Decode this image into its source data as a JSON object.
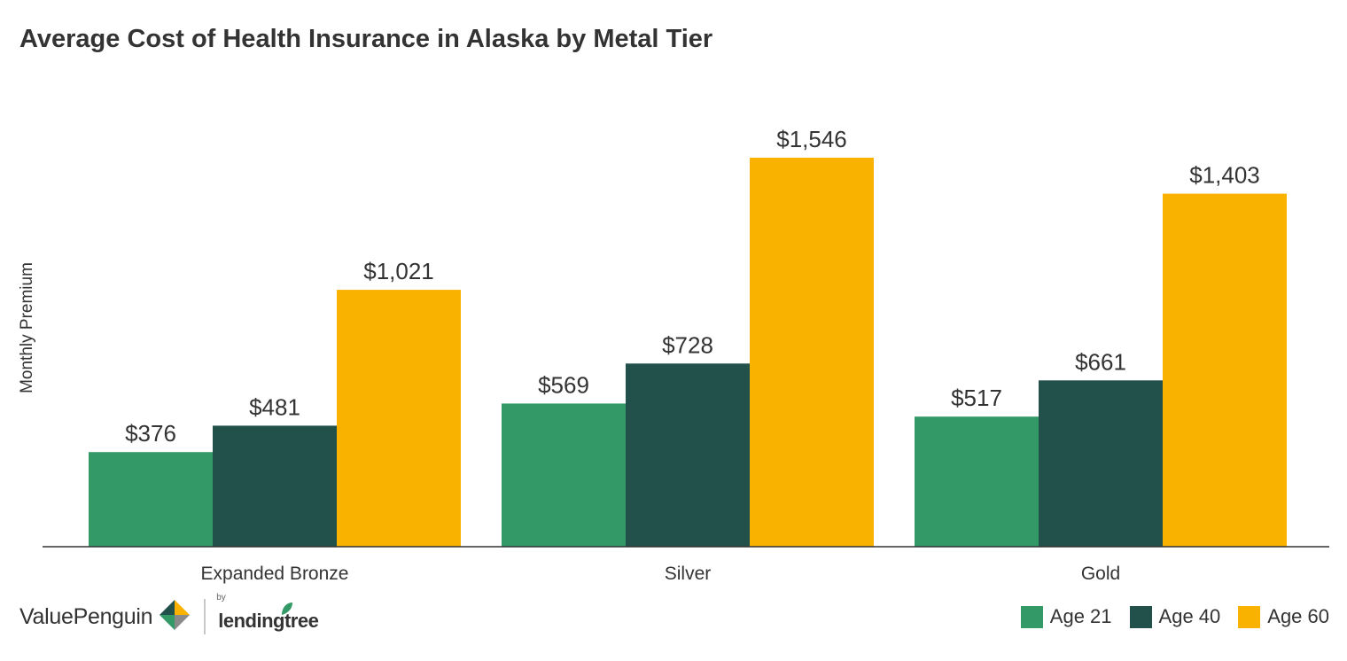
{
  "chart_data": {
    "type": "bar",
    "title": "Average Cost of Health Insurance in Alaska by Metal Tier",
    "ylabel": "Monthly Premium",
    "xlabel": "",
    "categories": [
      "Expanded Bronze",
      "Silver",
      "Gold"
    ],
    "series": [
      {
        "name": "Age 21",
        "color": "#339966",
        "values": [
          376,
          569,
          517
        ],
        "labels": [
          "$376",
          "$569",
          "$517"
        ]
      },
      {
        "name": "Age 40",
        "color": "#22504a",
        "values": [
          481,
          728,
          661
        ],
        "labels": [
          "$481",
          "$728",
          "$661"
        ]
      },
      {
        "name": "Age 60",
        "color": "#f9b200",
        "values": [
          1021,
          1546,
          1403
        ],
        "labels": [
          "$1,021",
          "$1,546",
          "$1,403"
        ]
      }
    ],
    "ylim": [
      0,
      1546
    ],
    "grid": false,
    "legend": "bottom-right"
  },
  "branding": {
    "brand_name": "ValuePenguin",
    "by_text": "by",
    "partner_name": "lendingtree",
    "logo_colors": [
      "#f9b200",
      "#22504a",
      "#339966",
      "#8a8a8a"
    ],
    "leaf_color": "#339966"
  },
  "colors": {
    "axis": "#333333",
    "text": "#333333"
  }
}
